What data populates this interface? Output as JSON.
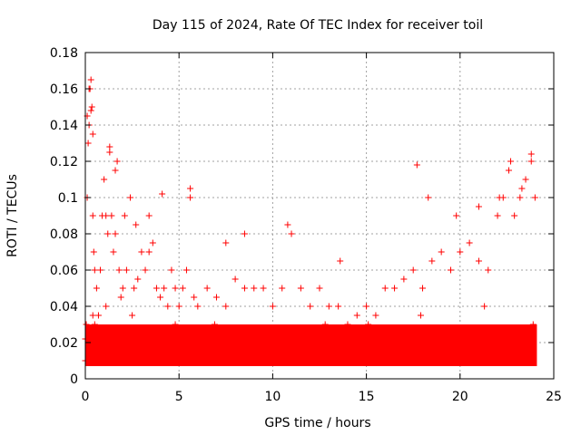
{
  "chart_data": {
    "type": "scatter",
    "title": "Day 115 of 2024, Rate Of TEC Index for receiver toil",
    "xlabel": "GPS time / hours",
    "ylabel": "ROTI / TECUs",
    "xlim": [
      0,
      25
    ],
    "ylim": [
      0,
      0.18
    ],
    "xticks": [
      0,
      5,
      10,
      15,
      20,
      25
    ],
    "xtick_labels": [
      "0",
      "5",
      "10",
      "15",
      "20",
      "25"
    ],
    "yticks": [
      0,
      0.02,
      0.04,
      0.06,
      0.08,
      0.1,
      0.12,
      0.14,
      0.16,
      0.18
    ],
    "ytick_labels": [
      "0",
      "0.02",
      "0.04",
      "0.06",
      "0.08",
      "0.1",
      "0.12",
      "0.14",
      "0.16",
      "0.18"
    ],
    "grid": true,
    "marker": "+",
    "color": "#ff0000",
    "series": [
      {
        "name": "ROTI",
        "x": [
          0.0,
          0.05,
          0.1,
          0.15,
          0.2,
          0.25,
          0.3,
          0.35,
          0.4,
          0.45,
          0.5,
          0.6,
          0.7,
          0.8,
          0.9,
          1.0,
          1.1,
          1.2,
          1.3,
          1.4,
          1.5,
          1.6,
          1.7,
          1.8,
          1.9,
          2.0,
          2.2,
          2.4,
          2.6,
          2.8,
          3.0,
          3.2,
          3.4,
          3.6,
          3.8,
          4.0,
          4.2,
          4.4,
          4.6,
          4.8,
          5.0,
          5.2,
          5.4,
          5.6,
          5.8,
          6.0,
          6.5,
          7.0,
          7.5,
          8.0,
          8.5,
          9.0,
          9.5,
          10.0,
          10.5,
          11.0,
          11.5,
          12.0,
          12.5,
          13.0,
          13.5,
          14.0,
          14.5,
          15.0,
          15.5,
          16.0,
          16.5,
          17.0,
          17.5,
          18.0,
          18.5,
          19.0,
          19.5,
          20.0,
          20.5,
          21.0,
          21.5,
          22.0,
          22.3,
          22.6,
          22.9,
          23.2,
          23.5,
          23.8,
          24.0,
          0.1,
          0.2,
          0.3,
          0.4,
          1.3,
          1.6,
          2.1,
          2.7,
          3.4,
          4.1,
          5.6,
          7.5,
          8.5,
          10.8,
          13.6,
          17.7,
          18.3,
          19.8,
          21.0,
          22.1,
          22.7,
          23.3,
          23.8,
          0.2,
          0.3,
          0.5,
          1.5,
          3.0,
          4.5,
          6.5,
          9.2,
          11.5,
          14.0,
          16.0,
          18.8,
          20.2,
          22.0,
          23.0,
          0.0,
          0.7,
          1.9,
          3.6,
          5.3,
          7.2,
          8.9,
          10.4,
          12.2,
          13.9,
          15.6,
          17.3,
          19.1,
          20.7,
          22.4,
          23.6,
          0.4,
          1.1,
          2.5,
          4.8,
          6.9,
          9.7,
          12.8,
          15.1,
          17.9,
          21.3,
          23.9
        ],
        "y": [
          0.022,
          0.03,
          0.1,
          0.13,
          0.14,
          0.16,
          0.165,
          0.15,
          0.09,
          0.07,
          0.06,
          0.05,
          0.035,
          0.06,
          0.09,
          0.11,
          0.09,
          0.08,
          0.125,
          0.09,
          0.07,
          0.08,
          0.12,
          0.06,
          0.045,
          0.05,
          0.06,
          0.1,
          0.05,
          0.055,
          0.07,
          0.06,
          0.07,
          0.075,
          0.05,
          0.045,
          0.05,
          0.04,
          0.06,
          0.05,
          0.04,
          0.05,
          0.06,
          0.1,
          0.045,
          0.04,
          0.05,
          0.045,
          0.04,
          0.055,
          0.05,
          0.05,
          0.05,
          0.04,
          0.05,
          0.08,
          0.05,
          0.04,
          0.05,
          0.04,
          0.04,
          0.03,
          0.035,
          0.04,
          0.035,
          0.05,
          0.05,
          0.055,
          0.06,
          0.05,
          0.065,
          0.07,
          0.06,
          0.07,
          0.075,
          0.065,
          0.06,
          0.09,
          0.1,
          0.115,
          0.09,
          0.1,
          0.11,
          0.12,
          0.1,
          0.145,
          0.16,
          0.148,
          0.135,
          0.128,
          0.115,
          0.09,
          0.085,
          0.09,
          0.102,
          0.105,
          0.075,
          0.08,
          0.085,
          0.065,
          0.118,
          0.1,
          0.09,
          0.095,
          0.1,
          0.12,
          0.105,
          0.124,
          0.02,
          0.025,
          0.03,
          0.028,
          0.02,
          0.025,
          0.02,
          0.022,
          0.02,
          0.018,
          0.022,
          0.025,
          0.02,
          0.022,
          0.025,
          0.01,
          0.012,
          0.015,
          0.01,
          0.012,
          0.01,
          0.012,
          0.01,
          0.012,
          0.01,
          0.012,
          0.015,
          0.012,
          0.01,
          0.015,
          0.012,
          0.035,
          0.04,
          0.035,
          0.03,
          0.03,
          0.028,
          0.03,
          0.03,
          0.035,
          0.04,
          0.03
        ]
      }
    ]
  }
}
